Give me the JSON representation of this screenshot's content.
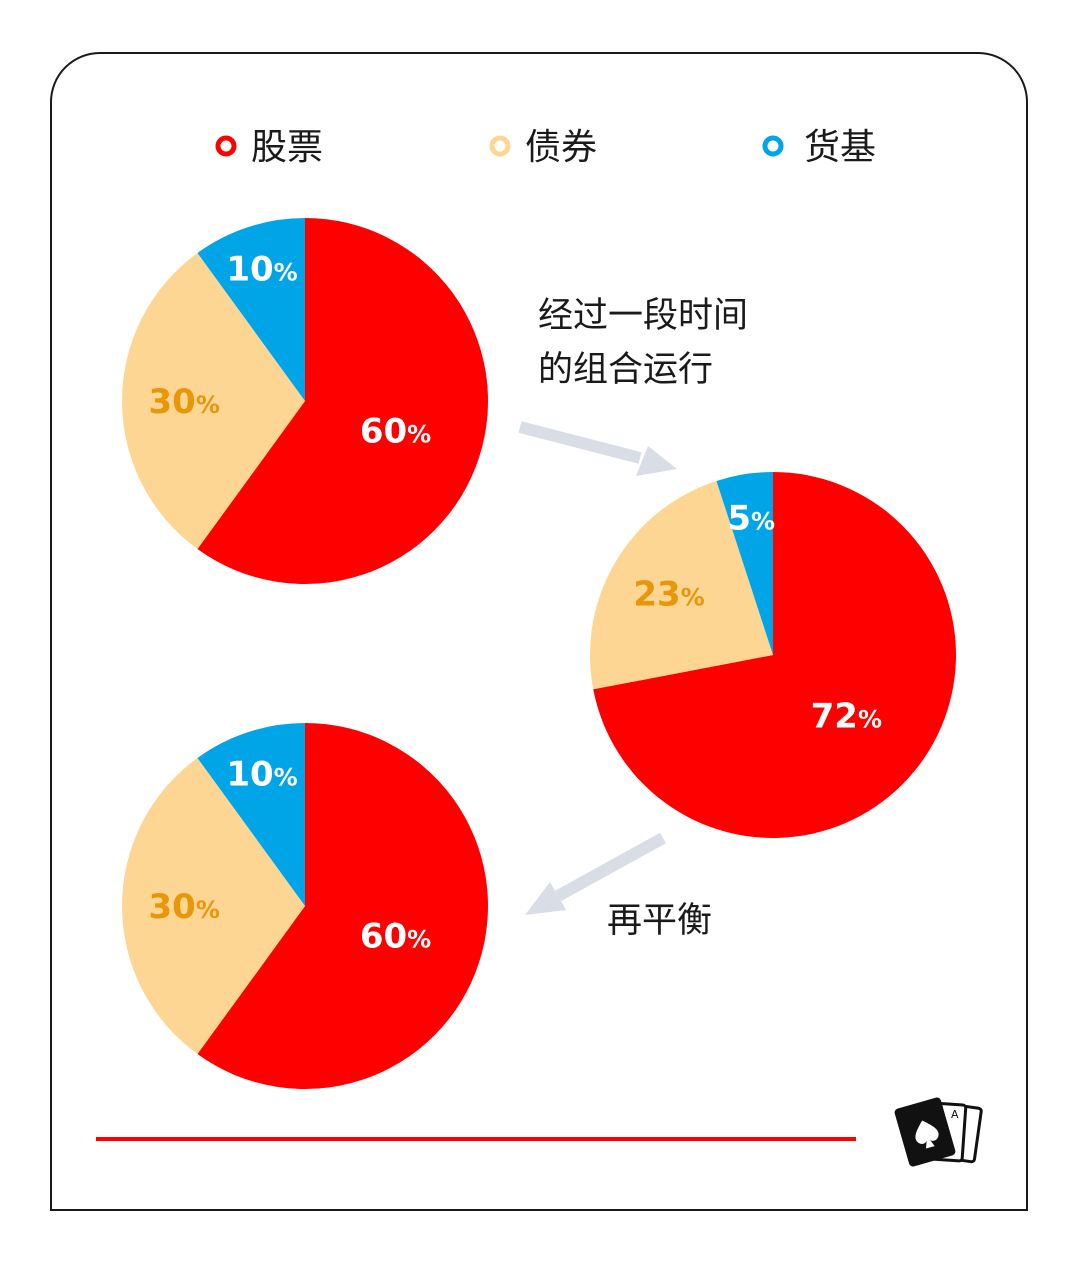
{
  "colors": {
    "stock": "#ff0000",
    "bond": "#fdd693",
    "money": "#00a5e8",
    "bond_label": "#e8960a",
    "arrow": "#d9dde6",
    "rule": "#ff0000",
    "white": "#ffffff"
  },
  "legend": [
    {
      "label": "股票",
      "color_key": "stock"
    },
    {
      "label": "债券",
      "color_key": "bond"
    },
    {
      "label": "货基",
      "color_key": "money"
    }
  ],
  "captions": {
    "drift_line1": "经过一段时间",
    "drift_line2": "的组合运行",
    "rebalance": "再平衡"
  },
  "logo_icon": "playing-cards-spade-icon",
  "chart_data": [
    {
      "type": "pie",
      "name": "initial",
      "categories": [
        "股票",
        "债券",
        "货基"
      ],
      "values": [
        60,
        30,
        10
      ],
      "labels": [
        "60%",
        "30%",
        "10%"
      ]
    },
    {
      "type": "pie",
      "name": "after-drift",
      "categories": [
        "股票",
        "债券",
        "货基"
      ],
      "values": [
        72,
        23,
        5
      ],
      "labels": [
        "72%",
        "23%",
        "5%"
      ]
    },
    {
      "type": "pie",
      "name": "rebalanced",
      "categories": [
        "股票",
        "债券",
        "货基"
      ],
      "values": [
        60,
        30,
        10
      ],
      "labels": [
        "60%",
        "30%",
        "10%"
      ]
    }
  ]
}
